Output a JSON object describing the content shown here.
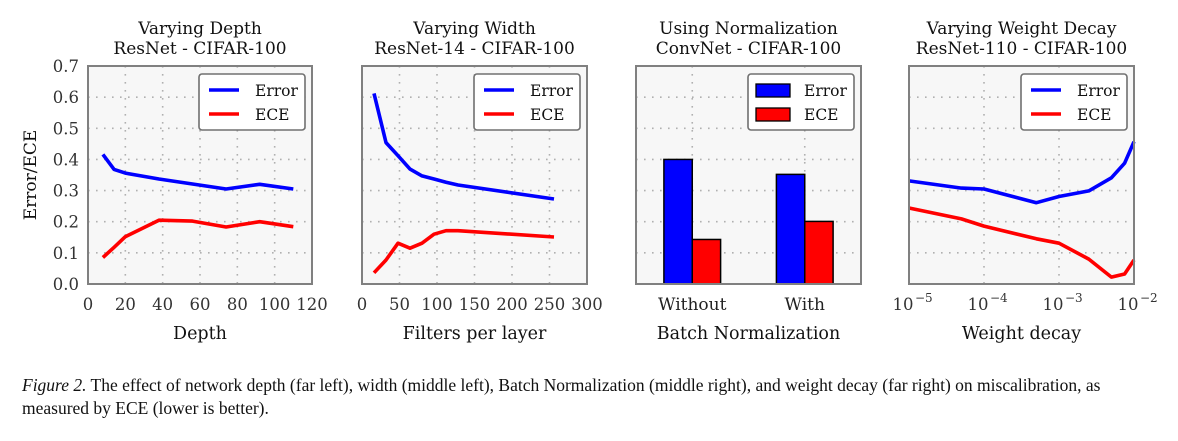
{
  "chart_data": [
    {
      "type": "line",
      "title": [
        "Varying Depth",
        "ResNet - CIFAR-100"
      ],
      "xlabel": "Depth",
      "ylabel": "Error/ECE",
      "xscale": "linear",
      "xlim": [
        0,
        120
      ],
      "ylim": [
        0,
        0.7
      ],
      "xticks": [
        0,
        20,
        40,
        60,
        80,
        100,
        120
      ],
      "xtick_labels": [
        "0",
        "20",
        "40",
        "60",
        "80",
        "100",
        "120"
      ],
      "yticks": [
        0.0,
        0.1,
        0.2,
        0.3,
        0.4,
        0.5,
        0.6,
        0.7
      ],
      "ytick_labels": [
        "0.0",
        "0.1",
        "0.2",
        "0.3",
        "0.4",
        "0.5",
        "0.6",
        "0.7"
      ],
      "grid": true,
      "legend": "top-right",
      "series": [
        {
          "name": "Error",
          "color": "#0000ff",
          "x": [
            8,
            14,
            20,
            38,
            56,
            74,
            92,
            110
          ],
          "y": [
            0.416,
            0.368,
            0.356,
            0.337,
            0.321,
            0.305,
            0.32,
            0.305
          ]
        },
        {
          "name": "ECE",
          "color": "#ff0000",
          "x": [
            8,
            14,
            20,
            38,
            56,
            74,
            92,
            110
          ],
          "y": [
            0.085,
            0.118,
            0.152,
            0.205,
            0.202,
            0.183,
            0.2,
            0.184
          ]
        }
      ]
    },
    {
      "type": "line",
      "title": [
        "Varying Width",
        "ResNet-14 - CIFAR-100"
      ],
      "xlabel": "Filters per layer",
      "ylabel": "",
      "xscale": "linear",
      "xlim": [
        0,
        300
      ],
      "ylim": [
        0,
        0.7
      ],
      "xticks": [
        0,
        50,
        100,
        150,
        200,
        250,
        300
      ],
      "xtick_labels": [
        "0",
        "50",
        "100",
        "150",
        "200",
        "250",
        "300"
      ],
      "yticks": [
        0.0,
        0.1,
        0.2,
        0.3,
        0.4,
        0.5,
        0.6,
        0.7
      ],
      "ytick_labels": [],
      "grid": true,
      "legend": "top-right",
      "series": [
        {
          "name": "Error",
          "color": "#0000ff",
          "x": [
            16,
            32,
            48,
            64,
            80,
            96,
            112,
            128,
            256
          ],
          "y": [
            0.612,
            0.454,
            0.412,
            0.369,
            0.347,
            0.337,
            0.327,
            0.318,
            0.273
          ]
        },
        {
          "name": "ECE",
          "color": "#ff0000",
          "x": [
            16,
            32,
            48,
            64,
            80,
            96,
            112,
            128,
            256
          ],
          "y": [
            0.036,
            0.077,
            0.131,
            0.115,
            0.131,
            0.16,
            0.171,
            0.171,
            0.151
          ]
        }
      ]
    },
    {
      "type": "bar",
      "title": [
        "Using Normalization",
        "ConvNet - CIFAR-100"
      ],
      "xlabel": "Batch Normalization",
      "ylabel": "",
      "categories": [
        "Without",
        "With"
      ],
      "ylim": [
        0,
        0.7
      ],
      "yticks": [
        0.0,
        0.1,
        0.2,
        0.3,
        0.4,
        0.5,
        0.6,
        0.7
      ],
      "ytick_labels": [],
      "grid": true,
      "legend": "top-right",
      "series": [
        {
          "name": "Error",
          "color": "#0000ff",
          "values": [
            0.4,
            0.352
          ]
        },
        {
          "name": "ECE",
          "color": "#ff0000",
          "values": [
            0.143,
            0.201
          ]
        }
      ]
    },
    {
      "type": "line",
      "title": [
        "Varying Weight Decay",
        "ResNet-110 - CIFAR-100"
      ],
      "xlabel": "Weight decay",
      "ylabel": "",
      "xscale": "log",
      "xlim": [
        1e-05,
        0.01
      ],
      "ylim": [
        0,
        0.7
      ],
      "xticks": [
        1e-05,
        0.0001,
        0.001,
        0.01
      ],
      "xtick_labels": [
        [
          "10",
          "−5"
        ],
        [
          "10",
          "−4"
        ],
        [
          "10",
          "−3"
        ],
        [
          "10",
          "−2"
        ]
      ],
      "yticks": [
        0.0,
        0.1,
        0.2,
        0.3,
        0.4,
        0.5,
        0.6,
        0.7
      ],
      "ytick_labels": [],
      "grid": true,
      "legend": "top-right",
      "series": [
        {
          "name": "Error",
          "color": "#0000ff",
          "x": [
            1e-05,
            5e-05,
            0.0001,
            0.0005,
            0.001,
            0.0025,
            0.005,
            0.0075,
            0.01
          ],
          "y": [
            0.331,
            0.308,
            0.305,
            0.261,
            0.281,
            0.299,
            0.341,
            0.388,
            0.457
          ]
        },
        {
          "name": "ECE",
          "color": "#ff0000",
          "x": [
            1e-05,
            5e-05,
            0.0001,
            0.0005,
            0.001,
            0.0025,
            0.005,
            0.0075,
            0.01
          ],
          "y": [
            0.244,
            0.209,
            0.186,
            0.145,
            0.131,
            0.08,
            0.022,
            0.032,
            0.077
          ]
        }
      ]
    }
  ],
  "caption": {
    "label": "Figure 2.",
    "text": " The effect of network depth (far left), width (middle left), Batch Normalization (middle right), and weight decay (far right) on miscalibration, as measured by ECE (lower is better)."
  }
}
